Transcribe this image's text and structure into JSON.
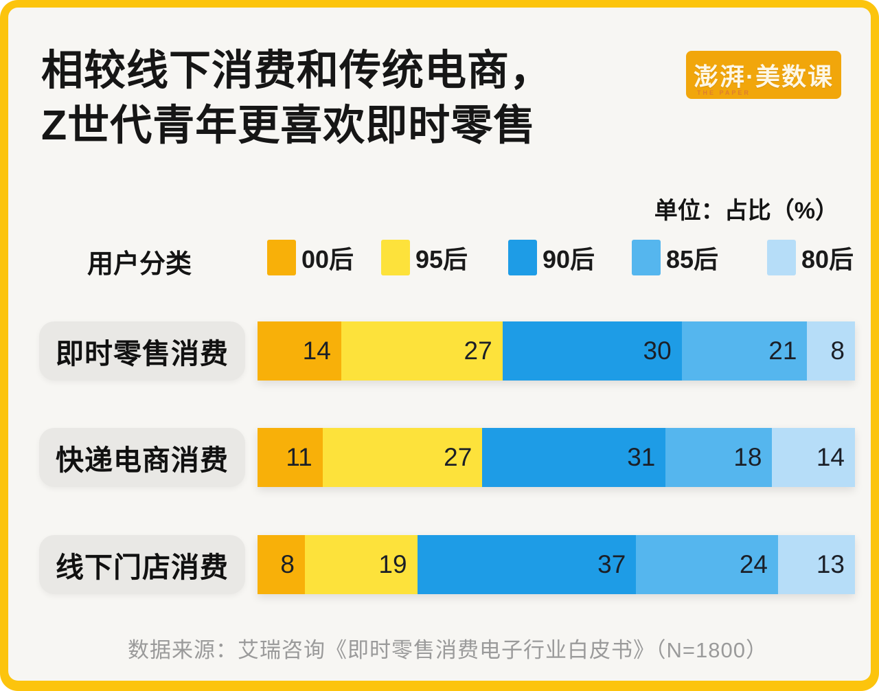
{
  "frame": {
    "border_color": "#FCC40D",
    "card_color": "#F7F6F3"
  },
  "header": {
    "title_line1": "相较线下消费和传统电商，",
    "title_line2": "Z世代青年更喜欢即时零售",
    "logo": {
      "text": "澎湃·美数课",
      "subtext": "THE PAPER",
      "bg_color": "#F1A60B"
    }
  },
  "unit_label": "单位：占比（%）",
  "legend": {
    "axis_label": "用户分类",
    "items": [
      {
        "label": "00后",
        "color": "#F8B009"
      },
      {
        "label": "95后",
        "color": "#FDE23B"
      },
      {
        "label": "90后",
        "color": "#1E9CE6"
      },
      {
        "label": "85后",
        "color": "#55B6EE"
      },
      {
        "label": "80后",
        "color": "#B6DDF8"
      }
    ]
  },
  "chart_data": {
    "type": "bar",
    "orientation": "horizontal",
    "stacked": true,
    "title": "相较线下消费和传统电商，Z世代青年更喜欢即时零售",
    "unit": "占比（%）",
    "categories": [
      "即时零售消费",
      "快递电商消费",
      "线下门店消费"
    ],
    "series": [
      {
        "name": "00后",
        "color": "#F8B009",
        "values": [
          14,
          11,
          8
        ]
      },
      {
        "name": "95后",
        "color": "#FDE23B",
        "values": [
          27,
          27,
          19
        ]
      },
      {
        "name": "90后",
        "color": "#1E9CE6",
        "values": [
          30,
          31,
          37
        ]
      },
      {
        "name": "85后",
        "color": "#55B6EE",
        "values": [
          21,
          18,
          24
        ]
      },
      {
        "name": "80后",
        "color": "#B6DDF8",
        "values": [
          8,
          14,
          13
        ]
      }
    ],
    "legend_position": "top",
    "grid": false,
    "value_labels": "inside-right"
  },
  "footer": {
    "source": "数据来源：艾瑞咨询《即时零售消费电子行业白皮书》（N=1800）"
  }
}
